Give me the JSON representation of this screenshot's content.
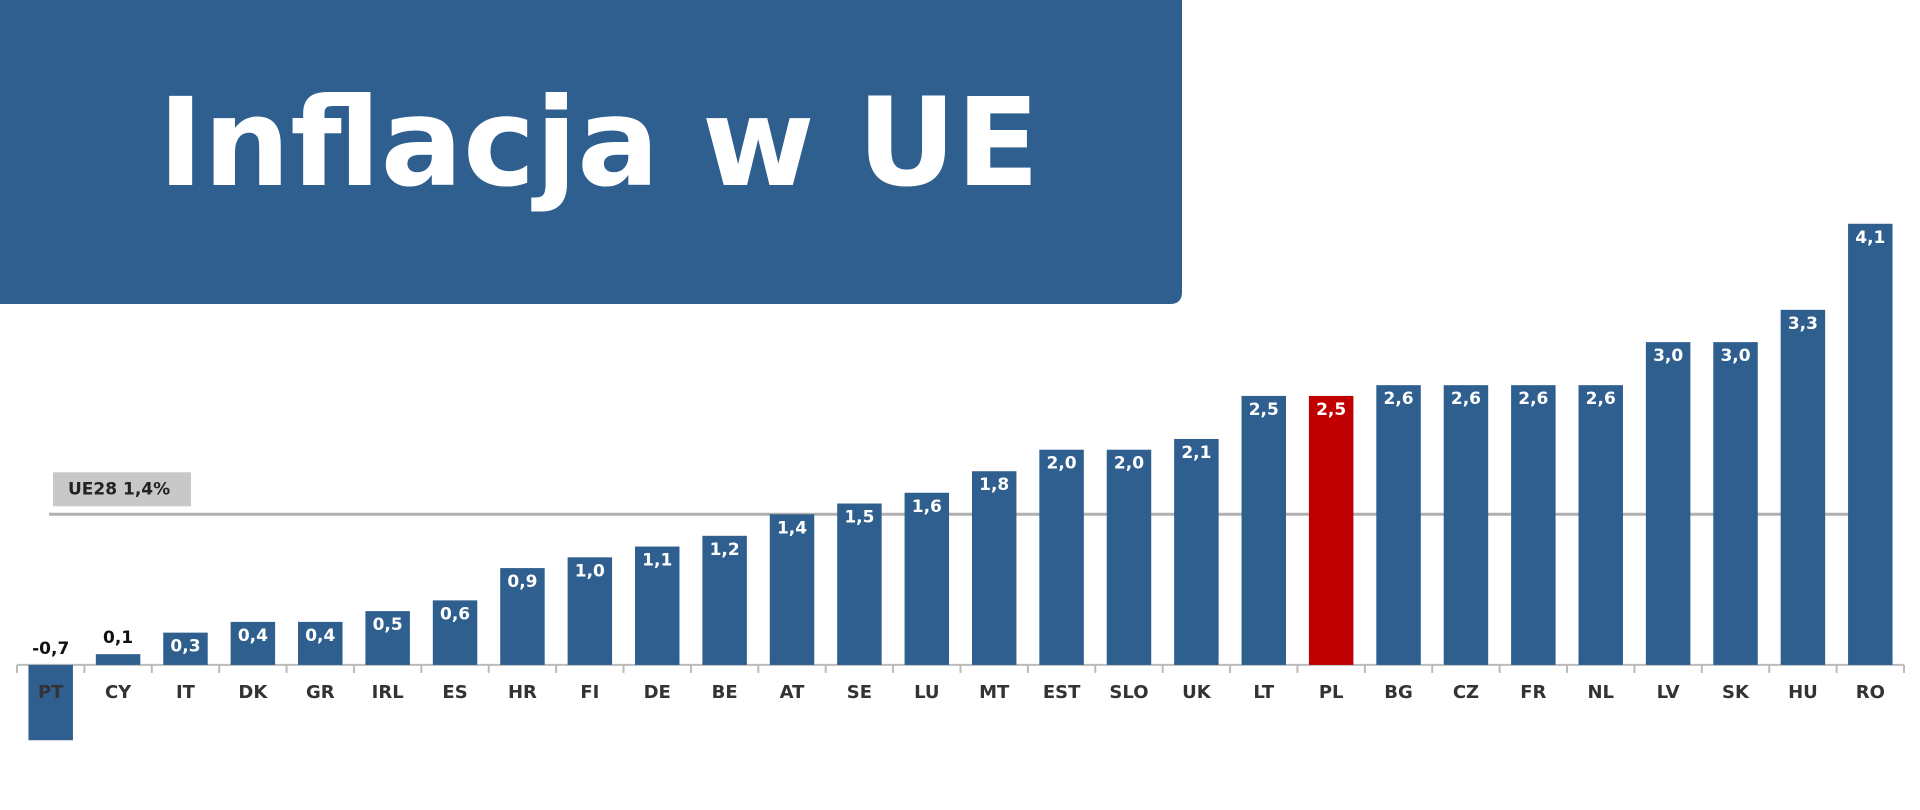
{
  "chart_data": {
    "type": "bar",
    "title": "Inflacja w UE",
    "categories": [
      "PT",
      "CY",
      "IT",
      "DK",
      "GR",
      "IRL",
      "ES",
      "HR",
      "FI",
      "DE",
      "BE",
      "AT",
      "SE",
      "LU",
      "MT",
      "EST",
      "SLO",
      "UK",
      "LT",
      "PL",
      "BG",
      "CZ",
      "FR",
      "NL",
      "LV",
      "SK",
      "HU",
      "RO"
    ],
    "values": [
      -0.7,
      0.1,
      0.3,
      0.4,
      0.4,
      0.5,
      0.6,
      0.9,
      1.0,
      1.1,
      1.2,
      1.4,
      1.5,
      1.6,
      1.8,
      2.0,
      2.0,
      2.1,
      2.5,
      2.5,
      2.6,
      2.6,
      2.6,
      2.6,
      3.0,
      3.0,
      3.3,
      4.1
    ],
    "value_labels": [
      "-0,7",
      "0,1",
      "0,3",
      "0,4",
      "0,4",
      "0,5",
      "0,6",
      "0,9",
      "1,0",
      "1,1",
      "1,2",
      "1,4",
      "1,5",
      "1,6",
      "1,8",
      "2,0",
      "2,0",
      "2,1",
      "2,5",
      "2,5",
      "2,6",
      "2,6",
      "2,6",
      "2,6",
      "3,0",
      "3,0",
      "3,3",
      "4,1"
    ],
    "colors": [
      "#2f5f8f",
      "#2f5f8f",
      "#2f5f8f",
      "#2f5f8f",
      "#2f5f8f",
      "#2f5f8f",
      "#2f5f8f",
      "#2f5f8f",
      "#2f5f8f",
      "#2f5f8f",
      "#2f5f8f",
      "#2f5f8f",
      "#2f5f8f",
      "#2f5f8f",
      "#2f5f8f",
      "#2f5f8f",
      "#2f5f8f",
      "#2f5f8f",
      "#2f5f8f",
      "#c00000",
      "#2f5f8f",
      "#2f5f8f",
      "#2f5f8f",
      "#2f5f8f",
      "#2f5f8f",
      "#2f5f8f",
      "#2f5f8f",
      "#2f5f8f"
    ],
    "ylim": [
      -0.8,
      4.2
    ],
    "reference": {
      "value": 1.4,
      "label": "UE28 1,4%"
    }
  }
}
